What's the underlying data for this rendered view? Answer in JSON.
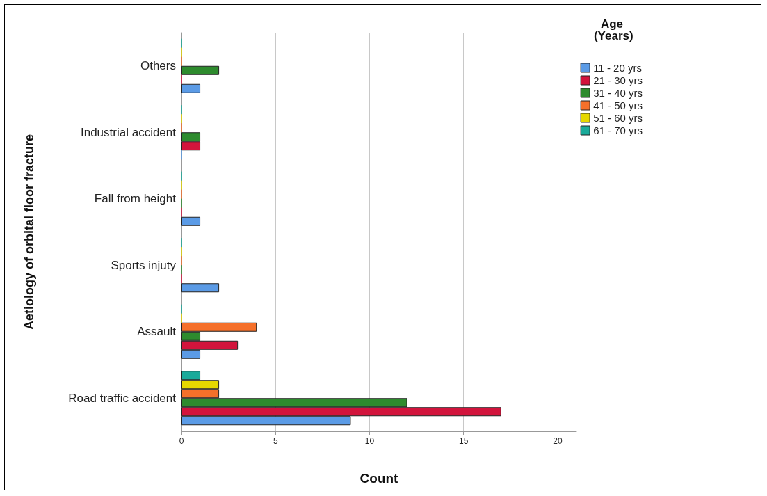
{
  "chart_data": {
    "type": "bar",
    "orientation": "horizontal",
    "xlabel": "Count",
    "ylabel": "Aetiology of orbital floor fracture",
    "legend_title": "Age (Years)",
    "categories": [
      "Others",
      "Industrial accident",
      "Fall from height",
      "Sports injuty",
      "Assault",
      "Road traffic accident"
    ],
    "series": [
      {
        "name": "11 - 20 yrs",
        "color": "#5b9be6",
        "values": [
          1,
          0,
          1,
          2,
          1,
          9
        ]
      },
      {
        "name": "21 - 30 yrs",
        "color": "#d2143c",
        "values": [
          0,
          1,
          0,
          0,
          3,
          17
        ]
      },
      {
        "name": "31 - 40 yrs",
        "color": "#2e8b2e",
        "values": [
          2,
          1,
          0,
          0,
          1,
          12
        ]
      },
      {
        "name": "41 - 50 yrs",
        "color": "#f5702a",
        "values": [
          0,
          0,
          0,
          0,
          4,
          2
        ]
      },
      {
        "name": "51 - 60 yrs",
        "color": "#e6d800",
        "values": [
          0,
          0,
          0,
          0,
          0,
          2
        ]
      },
      {
        "name": "61 - 70 yrs",
        "color": "#1aaa9a",
        "values": [
          0,
          0,
          0,
          0,
          0,
          1
        ]
      }
    ],
    "xlim": [
      0,
      21
    ],
    "xticks": [
      0,
      5,
      10,
      15,
      20
    ],
    "grid": "x",
    "legend": "top right"
  }
}
